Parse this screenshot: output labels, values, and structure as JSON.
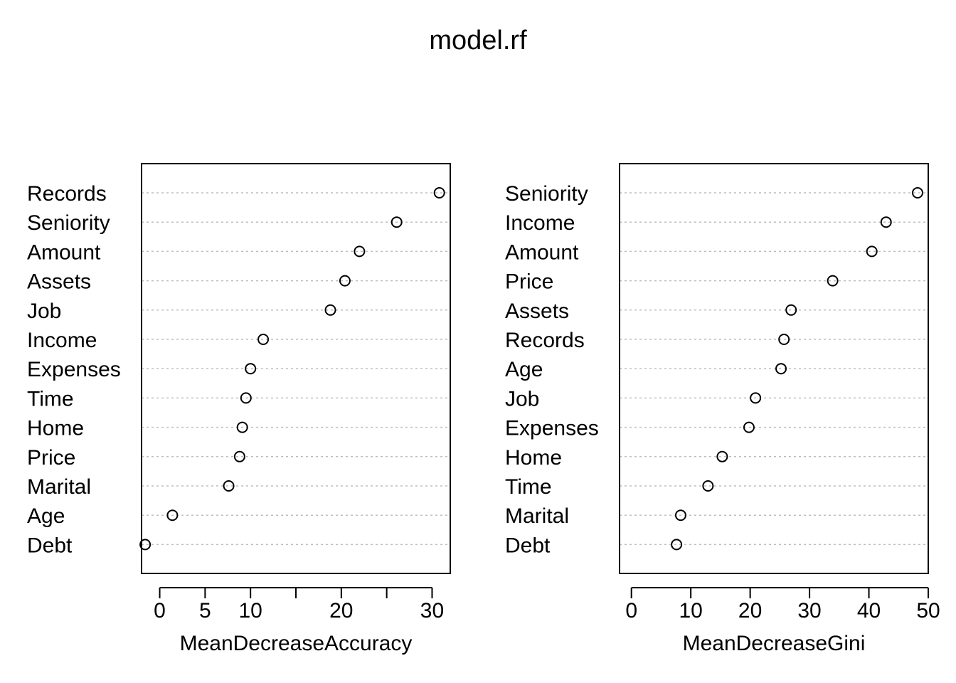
{
  "title": "model.rf",
  "chart_data": [
    {
      "type": "scatter",
      "subtype": "dotchart",
      "xlabel": "MeanDecreaseAccuracy",
      "xlim": [
        -2,
        32
      ],
      "xticks": [
        0,
        5,
        10,
        15,
        20,
        25,
        30
      ],
      "xtick_labels": [
        "0",
        "5",
        "10",
        "",
        "20",
        "",
        "30"
      ],
      "grid": "dotted horizontal",
      "categories": [
        "Records",
        "Seniority",
        "Amount",
        "Assets",
        "Job",
        "Income",
        "Expenses",
        "Time",
        "Home",
        "Price",
        "Marital",
        "Age",
        "Debt"
      ],
      "values": [
        30.8,
        26.1,
        22.0,
        20.4,
        18.8,
        11.4,
        10.0,
        9.5,
        9.1,
        8.8,
        7.6,
        1.4,
        -1.6
      ]
    },
    {
      "type": "scatter",
      "subtype": "dotchart",
      "xlabel": "MeanDecreaseGini",
      "xlim": [
        -2,
        50
      ],
      "xticks": [
        0,
        10,
        20,
        30,
        40,
        50
      ],
      "xtick_labels": [
        "0",
        "10",
        "20",
        "30",
        "40",
        "50"
      ],
      "grid": "dotted horizontal",
      "categories": [
        "Seniority",
        "Income",
        "Amount",
        "Price",
        "Assets",
        "Records",
        "Age",
        "Job",
        "Expenses",
        "Home",
        "Time",
        "Marital",
        "Debt"
      ],
      "values": [
        48.2,
        42.9,
        40.5,
        33.9,
        26.9,
        25.7,
        25.2,
        20.9,
        19.8,
        15.3,
        12.9,
        8.3,
        7.6
      ]
    }
  ]
}
